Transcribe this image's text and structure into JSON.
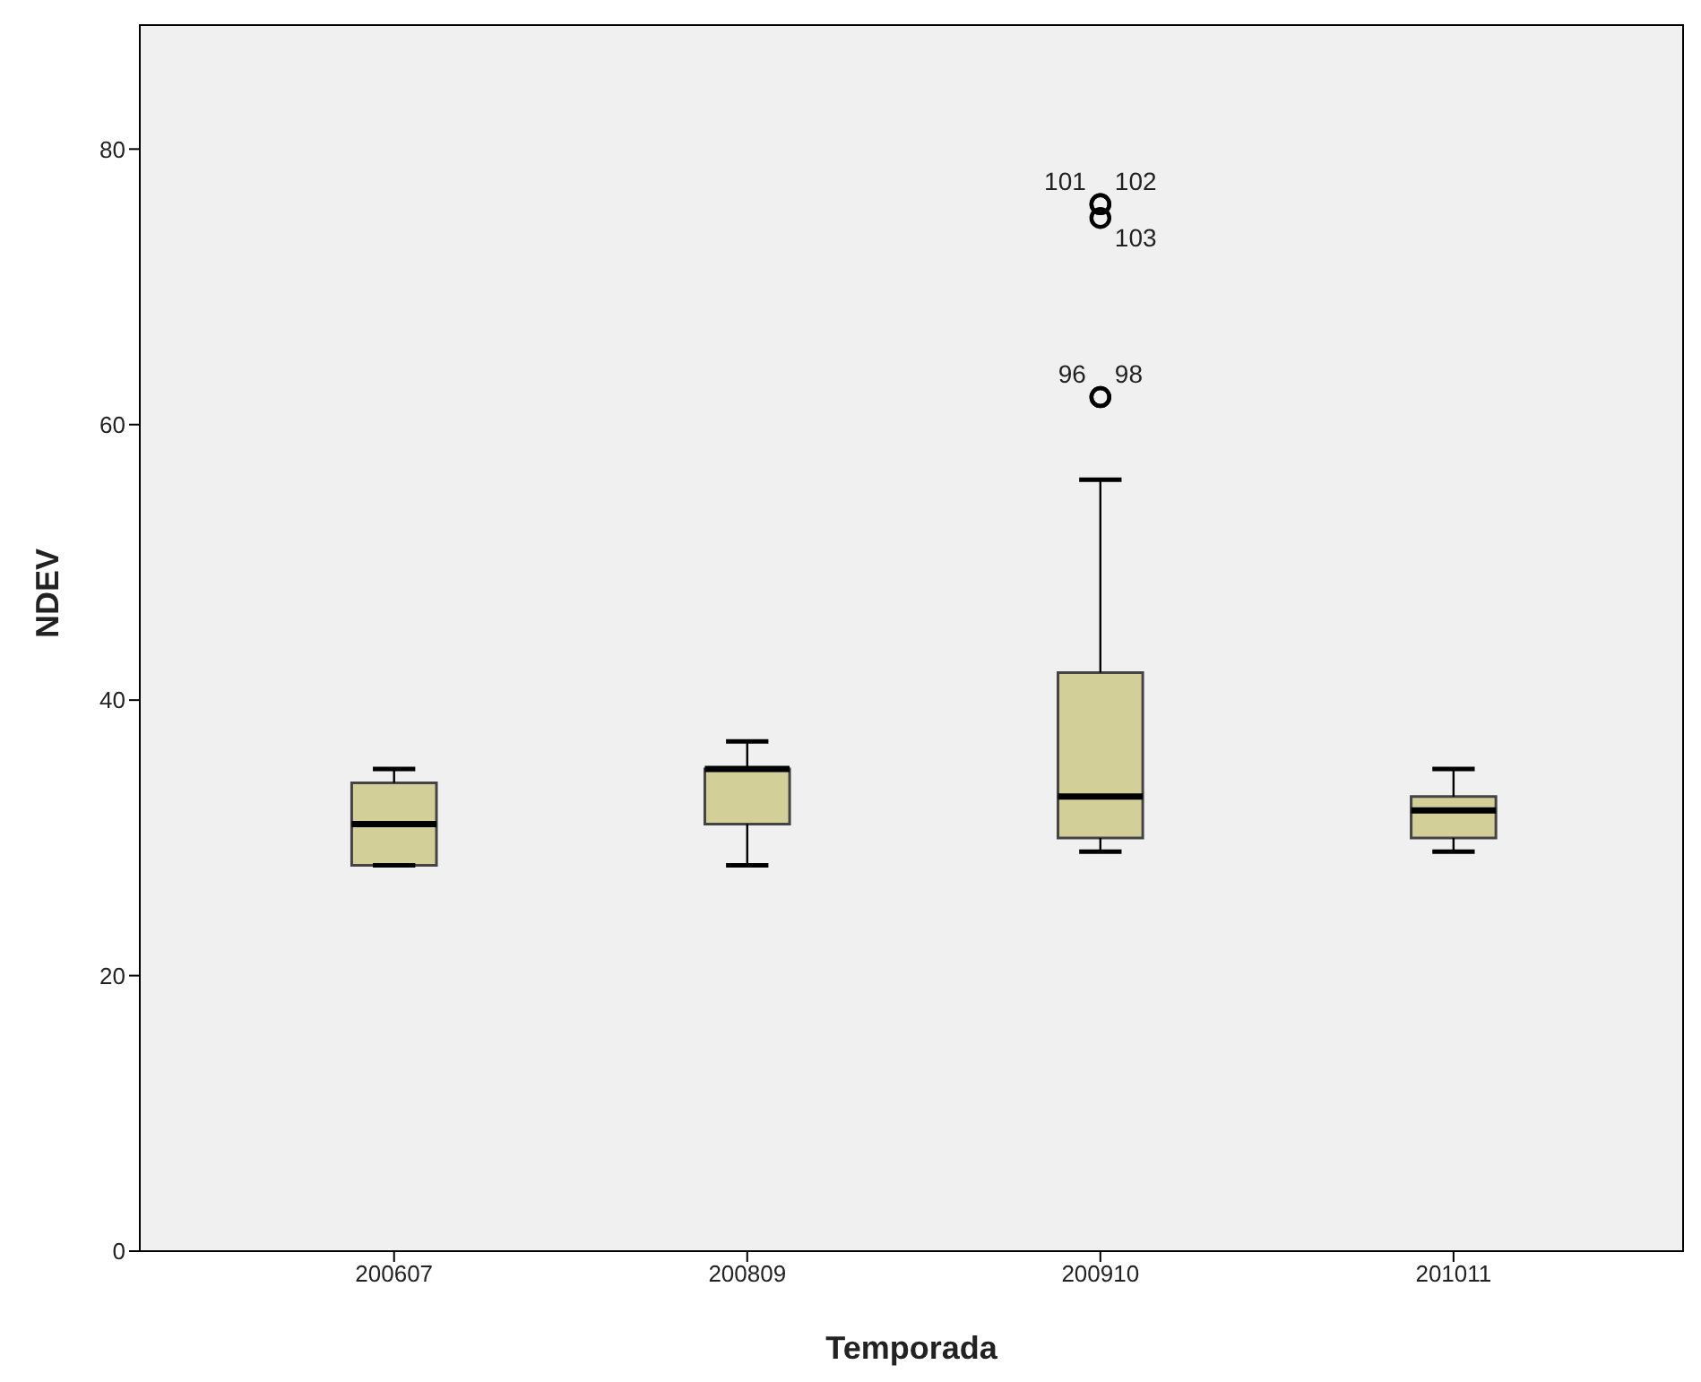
{
  "chart_data": {
    "type": "box",
    "xlabel": "Temporada",
    "ylabel": "NDEV",
    "categories": [
      "200607",
      "200809",
      "200910",
      "201011"
    ],
    "color": "#d3cf98",
    "boxes": [
      {
        "low": 28,
        "q1": 28,
        "median": 31,
        "q3": 34,
        "high": 35
      },
      {
        "low": 28,
        "q1": 31,
        "median": 35,
        "q3": 35,
        "high": 37
      },
      {
        "low": 29,
        "q1": 30,
        "median": 33,
        "q3": 42,
        "high": 56,
        "outliers": [
          62,
          62,
          75,
          76,
          76
        ]
      },
      {
        "low": 29,
        "q1": 30,
        "median": 32,
        "q3": 33,
        "high": 35
      }
    ],
    "ylim": [
      0,
      89
    ],
    "yticks": [
      0,
      20,
      40,
      60,
      80
    ],
    "annotations": [
      "96",
      "98",
      "103",
      "101",
      "102"
    ]
  }
}
